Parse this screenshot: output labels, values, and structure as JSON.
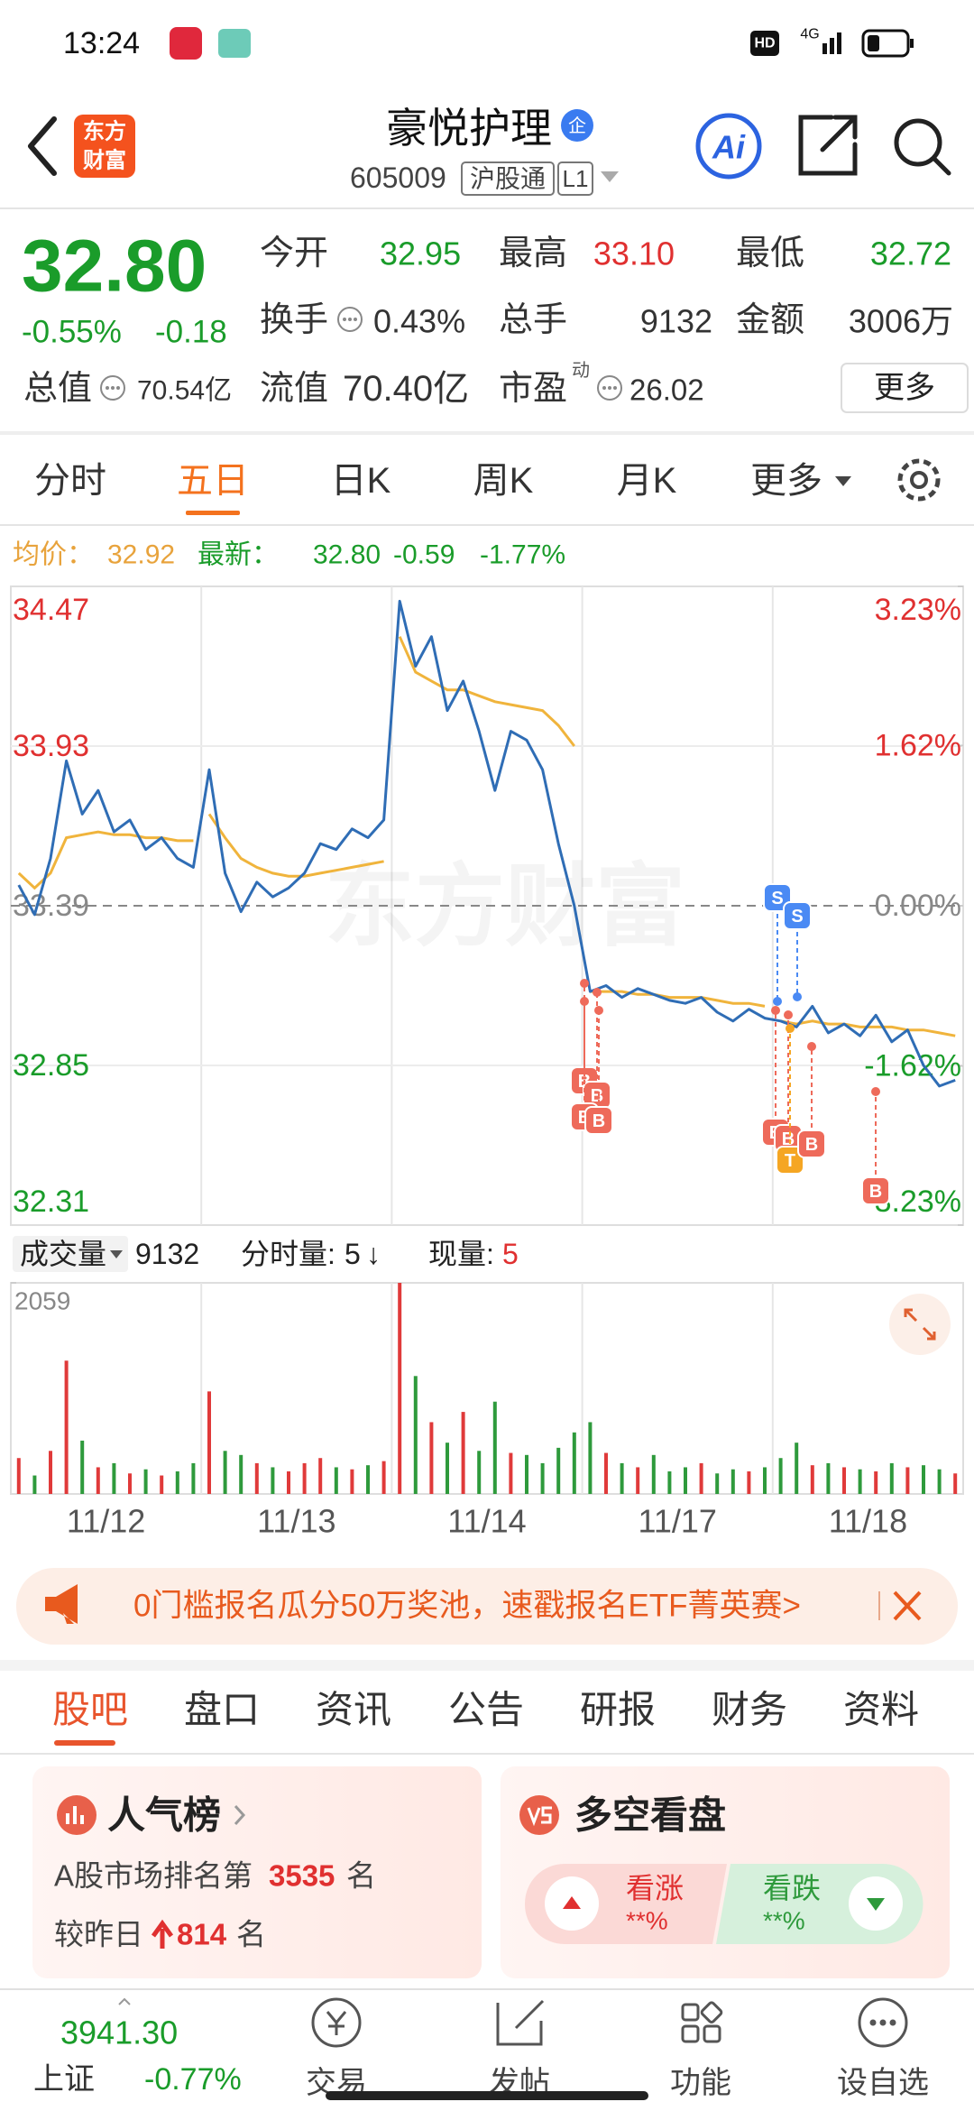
{
  "status_bar": {
    "time": "13:24",
    "hd": "HD",
    "network": "4G"
  },
  "header": {
    "logo_top": "东方",
    "logo_bottom": "财富",
    "title": "豪悦护理",
    "badge": "企",
    "code": "605009",
    "market": "沪股通",
    "level": "L1",
    "ai": "Ai"
  },
  "quote": {
    "price": "32.80",
    "change_pct": "-0.55%",
    "change": "-0.18",
    "total_value_label": "总值",
    "total_value": "70.54亿",
    "open_label": "今开",
    "open": "32.95",
    "high_label": "最高",
    "high": "33.10",
    "low_label": "最低",
    "low": "32.72",
    "turnover_label": "换手",
    "turnover": "0.43%",
    "volume_label": "总手",
    "volume": "9132",
    "amount_label": "金额",
    "amount": "3006万",
    "float_value_label": "流值",
    "float_value": "70.40亿",
    "pe_label": "市盈",
    "pe_sup": "动",
    "pe": "26.02",
    "more": "更多"
  },
  "chart_tabs": [
    "分时",
    "五日",
    "日K",
    "周K",
    "月K",
    "更多"
  ],
  "info_line": {
    "avg_label": "均价：",
    "avg": "32.92",
    "latest_label": "最新：",
    "latest": "32.80",
    "change": "-0.59",
    "change_pct": "-1.77%"
  },
  "chart_data": [
    {
      "type": "line",
      "series": [
        {
          "color": "#2f6db5",
          "values": [
            33.46,
            33.36,
            33.55,
            33.88,
            33.7,
            33.78,
            33.64,
            33.68,
            33.58,
            33.62,
            33.55,
            33.52,
            33.85,
            33.5,
            33.37,
            33.47,
            33.42,
            33.45,
            33.5,
            33.6,
            33.58,
            33.65,
            33.62,
            33.68,
            34.42,
            34.2,
            34.3,
            34.05,
            34.15,
            33.98,
            33.78,
            33.98,
            33.95,
            33.85,
            33.6,
            33.39,
            33.1,
            33.12,
            33.08,
            33.11,
            33.09,
            33.07,
            33.06,
            33.08,
            33.03,
            33.0,
            33.04,
            33.01,
            33.0,
            32.98,
            33.05,
            32.96,
            32.99,
            32.95,
            33.02,
            32.93,
            32.97,
            32.85,
            32.78,
            32.8
          ]
        },
        {
          "color": "#f0b43c",
          "values": [
            33.5,
            33.45,
            33.5,
            33.62,
            33.63,
            33.64,
            33.63,
            33.63,
            33.62,
            33.62,
            33.61,
            33.61,
            33.7,
            33.62,
            33.55,
            33.52,
            33.5,
            33.49,
            33.49,
            33.5,
            33.51,
            33.52,
            33.53,
            33.54,
            34.3,
            34.18,
            34.15,
            34.12,
            34.12,
            34.1,
            34.08,
            34.07,
            34.06,
            34.05,
            34.0,
            33.93,
            33.1,
            33.1,
            33.1,
            33.09,
            33.09,
            33.08,
            33.08,
            33.08,
            33.07,
            33.06,
            33.06,
            33.05,
            33.0,
            32.99,
            33.0,
            32.99,
            32.99,
            32.98,
            32.98,
            32.98,
            32.97,
            32.97,
            32.96,
            32.95
          ]
        }
      ],
      "ylim": [
        32.31,
        34.47
      ],
      "yticks": [
        34.47,
        33.93,
        33.39,
        32.85,
        32.31
      ],
      "y2lim": [
        -3.23,
        3.23
      ],
      "y2ticks": [
        {
          "value": 3.23,
          "label": "3.23%"
        },
        {
          "value": 1.62,
          "label": "1.62%"
        },
        {
          "value": 0,
          "label": "0.00%"
        },
        {
          "value": -1.62,
          "label": "-1.62%"
        },
        {
          "value": -3.23,
          "label": "-3.23%"
        }
      ],
      "day_labels": [
        "11/12",
        "11/13",
        "11/14",
        "11/17",
        "11/18"
      ],
      "grid": true,
      "watermark": "东方财富",
      "trade_marks": [
        "B",
        "B",
        "B",
        "B",
        "S",
        "S",
        "B",
        "B",
        "T",
        "B",
        "B"
      ]
    },
    {
      "type": "bar",
      "values": [
        350,
        180,
        420,
        1300,
        520,
        260,
        300,
        200,
        240,
        180,
        220,
        300,
        1000,
        420,
        380,
        300,
        260,
        220,
        300,
        350,
        260,
        240,
        280,
        320,
        2059,
        1150,
        700,
        500,
        800,
        420,
        900,
        400,
        380,
        300,
        450,
        600,
        700,
        400,
        300,
        260,
        380,
        220,
        260,
        300,
        200,
        240,
        220,
        260,
        350,
        500,
        280,
        300,
        260,
        240,
        220,
        300,
        260,
        280,
        240,
        200
      ],
      "up_color": "#e03a3a",
      "down_color": "#2e9a3c",
      "ylim": [
        0,
        2059
      ],
      "yticks": [
        2059
      ]
    }
  ],
  "volume_header": {
    "label": "成交量",
    "total": "9132",
    "tick_label": "分时量:",
    "tick": "5",
    "arrow": "↓",
    "now_label": "现量:",
    "now": "5"
  },
  "banner": {
    "text": "0门槛报名瓜分50万奖池，速戳报名ETF菁英赛>"
  },
  "section_tabs": [
    "股吧",
    "盘口",
    "资讯",
    "公告",
    "研报",
    "财务",
    "资料"
  ],
  "popularity": {
    "title": "人气榜",
    "rank_prefix": "A股市场排名第",
    "rank": "3535",
    "rank_suffix": "名",
    "change_prefix": "较昨日",
    "change": "814",
    "change_suffix": "名"
  },
  "sentiment": {
    "title": "多空看盘",
    "bull": "看涨",
    "bull_value": "**%",
    "bear": "看跌",
    "bear_value": "**%"
  },
  "bottom_nav": {
    "index_value": "3941.30",
    "index_name": "上证",
    "index_change": "-0.77%",
    "items": [
      "交易",
      "发帖",
      "功能",
      "设自选"
    ]
  }
}
